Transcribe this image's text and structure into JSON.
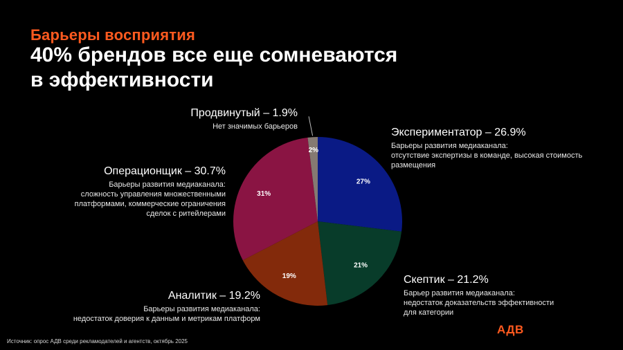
{
  "header": {
    "kicker": "Барьеры восприятия",
    "title_lines": [
      "40% брендов все еще сомневаются",
      "в эффективности"
    ]
  },
  "chart_data": {
    "type": "pie",
    "title": "",
    "slices": [
      {
        "name": "Экспериментатор",
        "value": 26.9,
        "data_label": "27%",
        "color": "#0a1a85"
      },
      {
        "name": "Скептик",
        "value": 21.2,
        "data_label": "21%",
        "color": "#083c2a"
      },
      {
        "name": "Аналитик",
        "value": 19.2,
        "data_label": "19%",
        "color": "#832a0b"
      },
      {
        "name": "Операционщик",
        "value": 30.7,
        "data_label": "31%",
        "color": "#8a1443"
      },
      {
        "name": "Продвинутый",
        "value": 1.9,
        "data_label": "2%",
        "color": "#857a72"
      }
    ],
    "start_angle_deg": 0,
    "direction": "clockwise"
  },
  "annotations": {
    "experimentator": {
      "head": "Экспериментатор – 26.9%",
      "desc": [
        "Барьеры развития медиаканала:",
        "отсутствие экспертизы в команде, высокая стоимость",
        "размещения"
      ]
    },
    "skeptic": {
      "head": "Скептик  – 21.2%",
      "desc": [
        "Барьер развития медиаканала:",
        "недостаток доказательств эффективности",
        "для категории"
      ]
    },
    "analyst": {
      "head": "Аналитик – 19.2%",
      "desc": [
        "Барьеры развития медиаканала:",
        "недостаток доверия к данным и метрикам платформ"
      ]
    },
    "operator": {
      "head": "Операционщик – 30.7%",
      "desc": [
        "Барьеры развития медиаканала:",
        "сложность управления множественными",
        "платформами, коммерческие ограничения",
        "сделок с ритейлерами"
      ]
    },
    "advanced": {
      "head": "Продвинутый – 1.9%",
      "desc": [
        "Нет значимых барьеров"
      ]
    }
  },
  "footer": {
    "source": "Источник: опрос АДВ среди рекламодателей и агентств, октябрь 2025",
    "logo": "АДВ"
  }
}
